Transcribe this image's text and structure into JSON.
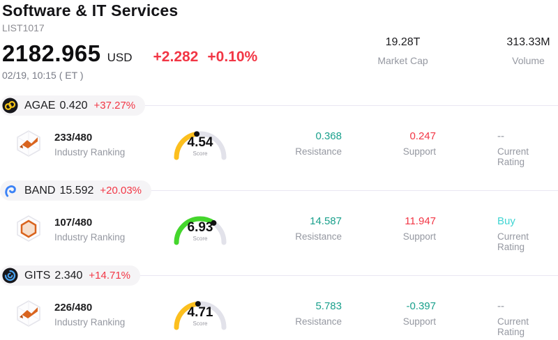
{
  "header": {
    "title": "Software & IT Services",
    "subtitle": "LIST1017",
    "price": "2182.965",
    "currency": "USD",
    "change_abs": "+2.282",
    "change_pct": "+0.10%",
    "timestamp": "02/19, 10:15 ( ET )",
    "stats": [
      {
        "value": "19.28T",
        "label": "Market Cap"
      },
      {
        "value": "313.33M",
        "label": "Volume"
      }
    ]
  },
  "colors": {
    "up_red": "#f23645",
    "teal": "#1aa08c",
    "buy_cyan": "#40d5d3",
    "muted_gray": "#8f939c",
    "gauge_track": "#e2e2ea",
    "gauge_yellow": "#fcbf1e",
    "gauge_green": "#44d62c",
    "pill_bg": "#f5f4f6"
  },
  "rows": [
    {
      "symbol": "AGAE",
      "price": "0.420",
      "change": "+37.27%",
      "coin_icon": "agae-coin",
      "ranking": {
        "value": "233/480",
        "label": "Industry Ranking"
      },
      "score": {
        "value": "4.54",
        "label": "Score",
        "number": 4.54,
        "max": 10,
        "color": "#fcbf1e"
      },
      "resistance": {
        "value": "0.368",
        "label": "Resistance",
        "color": "#1aa08c"
      },
      "support": {
        "value": "0.247",
        "label": "Support",
        "color": "#f23645"
      },
      "rating": {
        "value": "--",
        "label": "Current Rating",
        "color": "#8f939c"
      }
    },
    {
      "symbol": "BAND",
      "price": "15.592",
      "change": "+20.03%",
      "coin_icon": "band-coin",
      "ranking": {
        "value": "107/480",
        "label": "Industry Ranking"
      },
      "score": {
        "value": "6.93",
        "label": "Score",
        "number": 6.93,
        "max": 10,
        "color": "#44d62c"
      },
      "resistance": {
        "value": "14.587",
        "label": "Resistance",
        "color": "#1aa08c"
      },
      "support": {
        "value": "11.947",
        "label": "Support",
        "color": "#f23645"
      },
      "rating": {
        "value": "Buy",
        "label": "Current Rating",
        "color": "#40d5d3"
      }
    },
    {
      "symbol": "GITS",
      "price": "2.340",
      "change": "+14.71%",
      "coin_icon": "gits-coin",
      "ranking": {
        "value": "226/480",
        "label": "Industry Ranking"
      },
      "score": {
        "value": "4.71",
        "label": "Score",
        "number": 4.71,
        "max": 10,
        "color": "#fcbf1e"
      },
      "resistance": {
        "value": "5.783",
        "label": "Resistance",
        "color": "#1aa08c"
      },
      "support": {
        "value": "-0.397",
        "label": "Support",
        "color": "#1aa08c"
      },
      "rating": {
        "value": "--",
        "label": "Current Rating",
        "color": "#8f939c"
      }
    }
  ]
}
